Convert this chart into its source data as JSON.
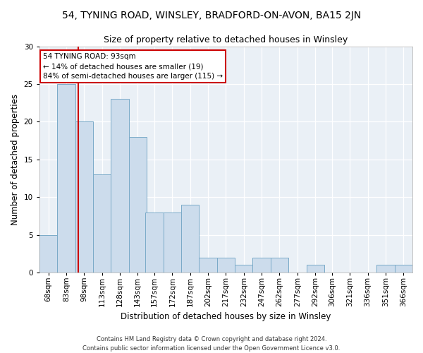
{
  "title": "54, TYNING ROAD, WINSLEY, BRADFORD-ON-AVON, BA15 2JN",
  "subtitle": "Size of property relative to detached houses in Winsley",
  "xlabel": "Distribution of detached houses by size in Winsley",
  "ylabel": "Number of detached properties",
  "footer_line1": "Contains HM Land Registry data © Crown copyright and database right 2024.",
  "footer_line2": "Contains public sector information licensed under the Open Government Licence v3.0.",
  "categories": [
    "68sqm",
    "83sqm",
    "98sqm",
    "113sqm",
    "128sqm",
    "143sqm",
    "157sqm",
    "172sqm",
    "187sqm",
    "202sqm",
    "217sqm",
    "232sqm",
    "247sqm",
    "262sqm",
    "277sqm",
    "292sqm",
    "306sqm",
    "321sqm",
    "336sqm",
    "351sqm",
    "366sqm"
  ],
  "values": [
    5,
    25,
    20,
    13,
    23,
    18,
    8,
    8,
    9,
    2,
    2,
    1,
    2,
    2,
    0,
    1,
    0,
    0,
    0,
    1,
    1
  ],
  "bar_color": "#ccdcec",
  "bar_edge_color": "#7aaac8",
  "ylim": [
    0,
    30
  ],
  "yticks": [
    0,
    5,
    10,
    15,
    20,
    25,
    30
  ],
  "property_size": 93,
  "property_label": "54 TYNING ROAD: 93sqm",
  "annotation_line1": "← 14% of detached houses are smaller (19)",
  "annotation_line2": "84% of semi-detached houses are larger (115) →",
  "vline_color": "#cc0000",
  "annotation_box_color": "#ffffff",
  "annotation_box_edge": "#cc0000",
  "bg_color": "#eaf0f6",
  "grid_color": "#ffffff",
  "title_fontsize": 10,
  "subtitle_fontsize": 9,
  "xlabel_fontsize": 8.5,
  "ylabel_fontsize": 8.5,
  "tick_fontsize": 7.5,
  "annotation_fontsize": 7.5,
  "footer_fontsize": 6
}
